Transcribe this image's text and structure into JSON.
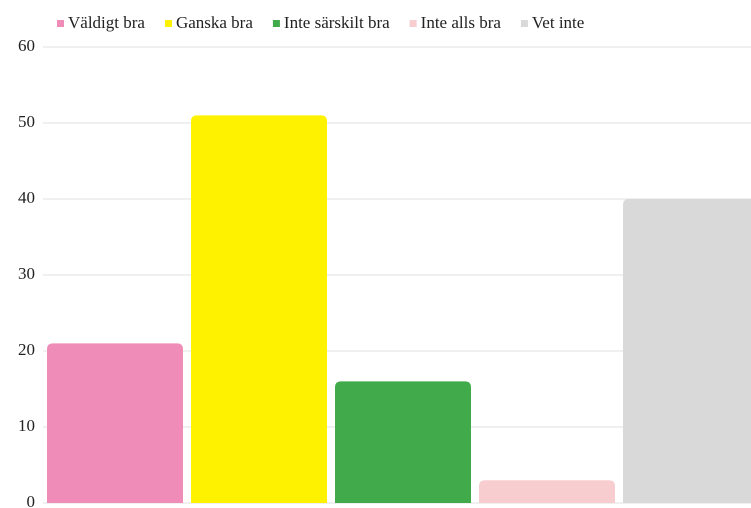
{
  "chart_data": {
    "type": "bar",
    "categories": [
      null
    ],
    "series": [
      {
        "name": "Väldigt bra",
        "color": "#f08cb8",
        "values": [
          21
        ]
      },
      {
        "name": "Ganska bra",
        "color": "#fff200",
        "values": [
          51
        ]
      },
      {
        "name": "Inte särskilt bra",
        "color": "#41ab4b",
        "values": [
          16
        ]
      },
      {
        "name": "Inte alls bra",
        "color": "#f8cdd0",
        "values": [
          3
        ]
      },
      {
        "name": "Vet inte",
        "color": "#d9d9d9",
        "values": [
          40
        ]
      }
    ],
    "ylim": [
      0,
      60
    ],
    "yticks": [
      0,
      10,
      20,
      30,
      40,
      50,
      60
    ],
    "grid": true,
    "legend": "top"
  }
}
